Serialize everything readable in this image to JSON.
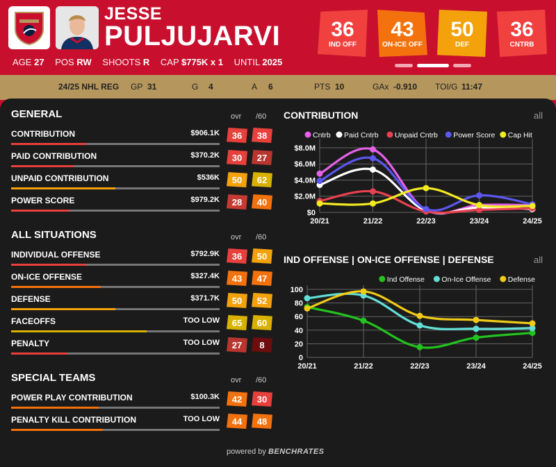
{
  "header": {
    "first_name": "JESSE",
    "last_name": "PULJUJARVI",
    "age_label": "AGE",
    "age": "27",
    "pos_label": "POS",
    "pos": "RW",
    "shoots_label": "SHOOTS",
    "shoots": "R",
    "cap_label": "CAP",
    "cap": "$775K x 1",
    "until_label": "UNTIL",
    "until": "2025",
    "badges": [
      {
        "value": "36",
        "label": "IND OFF",
        "color": "#f0413f"
      },
      {
        "value": "43",
        "label": "ON-ICE OFF",
        "color": "#f4720d"
      },
      {
        "value": "50",
        "label": "DEF",
        "color": "#f4a20b"
      },
      {
        "value": "36",
        "label": "CNTRB",
        "color": "#f0413f"
      }
    ]
  },
  "season_stats": {
    "season": "24/25 NHL REG",
    "gp_label": "GP",
    "gp": "31",
    "g_label": "G",
    "g": "4",
    "a_label": "A",
    "a": "6",
    "pts_label": "PTS",
    "pts": "10",
    "gax_label": "GAx",
    "gax": "-0.910",
    "toi_label": "TOI/G",
    "toi": "11:47"
  },
  "col_headers": {
    "ovr": "ovr",
    "per60": "/60"
  },
  "sections": [
    {
      "title": "GENERAL",
      "rows": [
        {
          "name": "CONTRIBUTION",
          "value": "$906.1K",
          "ovr": "36",
          "ovr_color": "#e8403c",
          "p60": "38",
          "p60_color": "#e8403c",
          "bar": 0.36,
          "bar_color": "#e8403c"
        },
        {
          "name": "PAID CONTRIBUTION",
          "value": "$370.2K",
          "ovr": "30",
          "ovr_color": "#e8403c",
          "p60": "27",
          "p60_color": "#b9362f",
          "bar": 0.3,
          "bar_color": "#e8403c"
        },
        {
          "name": "UNPAID CONTRIBUTION",
          "value": "$536K",
          "ovr": "50",
          "ovr_color": "#f4a20b",
          "p60": "62",
          "p60_color": "#d9b200",
          "bar": 0.5,
          "bar_color": "#f4a20b"
        },
        {
          "name": "POWER SCORE",
          "value": "$979.2K",
          "ovr": "28",
          "ovr_color": "#c73a33",
          "p60": "40",
          "p60_color": "#f4720d",
          "bar": 0.28,
          "bar_color": "#e8403c"
        }
      ]
    },
    {
      "title": "ALL SITUATIONS",
      "rows": [
        {
          "name": "INDIVIDUAL OFFENSE",
          "value": "$792.9K",
          "ovr": "36",
          "ovr_color": "#e8403c",
          "p60": "50",
          "p60_color": "#f4a20b",
          "bar": 0.36,
          "bar_color": "#e8403c"
        },
        {
          "name": "ON-ICE OFFENSE",
          "value": "$327.4K",
          "ovr": "43",
          "ovr_color": "#f4720d",
          "p60": "47",
          "p60_color": "#f4720d",
          "bar": 0.43,
          "bar_color": "#f4720d"
        },
        {
          "name": "DEFENSE",
          "value": "$371.7K",
          "ovr": "50",
          "ovr_color": "#f4a20b",
          "p60": "52",
          "p60_color": "#f4a20b",
          "bar": 0.5,
          "bar_color": "#f4a20b"
        },
        {
          "name": "FACEOFFS",
          "value": "TOO LOW",
          "ovr": "65",
          "ovr_color": "#d9b200",
          "p60": "60",
          "p60_color": "#d9b200",
          "bar": 0.65,
          "bar_color": "#d9b200"
        },
        {
          "name": "PENALTY",
          "value": "TOO LOW",
          "ovr": "27",
          "ovr_color": "#b9362f",
          "p60": "8",
          "p60_color": "#6e0d0d",
          "bar": 0.27,
          "bar_color": "#e8403c"
        }
      ]
    },
    {
      "title": "SPECIAL TEAMS",
      "rows": [
        {
          "name": "POWER PLAY CONTRIBUTION",
          "value": "$100.3K",
          "ovr": "42",
          "ovr_color": "#f4720d",
          "p60": "30",
          "p60_color": "#e8403c",
          "bar": 0.42,
          "bar_color": "#f4720d"
        },
        {
          "name": "PENALTY KILL CONTRIBUTION",
          "value": "TOO LOW",
          "ovr": "44",
          "ovr_color": "#f4720d",
          "p60": "48",
          "p60_color": "#f4720d",
          "bar": 0.44,
          "bar_color": "#f4720d"
        }
      ]
    }
  ],
  "charts_meta": {
    "all_label": "all",
    "powered_by": "powered by",
    "brand": "BENCHRATES"
  },
  "chart_data": [
    {
      "type": "line",
      "title": "CONTRIBUTION",
      "x": [
        "20/21",
        "21/22",
        "22/23",
        "23/24",
        "24/25"
      ],
      "y_ticks": [
        "$0",
        "$2.0M",
        "$4.0M",
        "$6.0M",
        "$8.0M"
      ],
      "ylim": [
        0,
        8.6
      ],
      "legend_position": "top",
      "series": [
        {
          "name": "Cntrb",
          "color": "#e461e8",
          "values": [
            4.8,
            7.8,
            0.3,
            0.9,
            0.9
          ]
        },
        {
          "name": "Paid Cntrb",
          "color": "#ffffff",
          "values": [
            3.4,
            5.3,
            0.2,
            0.6,
            0.4
          ]
        },
        {
          "name": "Unpaid Cntrb",
          "color": "#e8414f",
          "values": [
            1.4,
            2.6,
            0.1,
            0.3,
            0.5
          ]
        },
        {
          "name": "Power Score",
          "color": "#5b57f0",
          "values": [
            3.9,
            6.7,
            0.4,
            2.1,
            1.0
          ]
        },
        {
          "name": "Cap Hit",
          "color": "#f4ea22",
          "values": [
            1.1,
            1.1,
            3.0,
            0.9,
            0.8
          ]
        }
      ]
    },
    {
      "type": "line",
      "title": "IND OFFENSE | ON-ICE OFFENSE | DEFENSE",
      "x": [
        "20/21",
        "21/22",
        "22/23",
        "23/24",
        "24/25"
      ],
      "y_ticks": [
        "0",
        "20",
        "40",
        "60",
        "80",
        "100"
      ],
      "ylim": [
        0,
        100
      ],
      "legend_position": "top-right",
      "series": [
        {
          "name": "Ind Offense",
          "color": "#22c31e",
          "values": [
            74,
            54,
            15,
            29,
            36
          ]
        },
        {
          "name": "On-Ice Offense",
          "color": "#62dfd7",
          "values": [
            87,
            91,
            47,
            42,
            43
          ]
        },
        {
          "name": "Defense",
          "color": "#f2cb16",
          "values": [
            72,
            97,
            61,
            55,
            50
          ]
        }
      ]
    }
  ]
}
